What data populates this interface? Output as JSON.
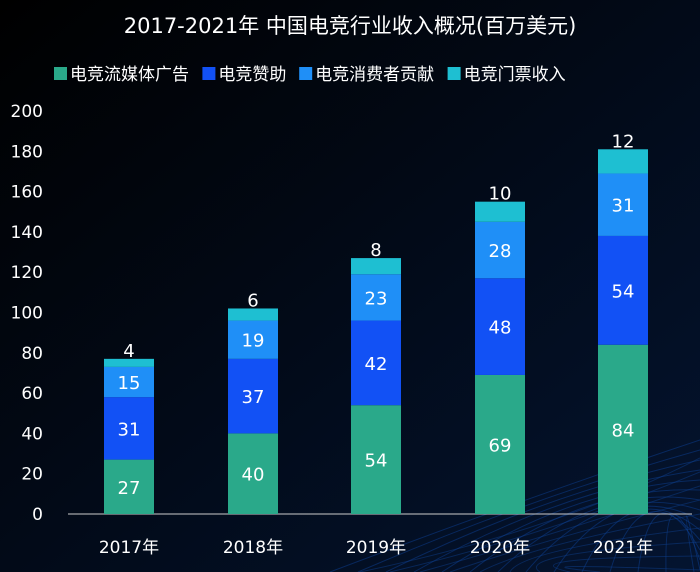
{
  "chart_data": {
    "type": "bar",
    "stacked": true,
    "title": "2017-2021年  中国电竞行业收入概况(百万美元)",
    "categories": [
      "2017年",
      "2018年",
      "2019年",
      "2020年",
      "2021年"
    ],
    "series": [
      {
        "name": "电竞流媒体广告",
        "color": "#2aa98a",
        "values": [
          27,
          40,
          54,
          69,
          84
        ]
      },
      {
        "name": "电竞赞助",
        "color": "#1251f5",
        "values": [
          31,
          37,
          42,
          48,
          54
        ]
      },
      {
        "name": "电竞消费者贡献",
        "color": "#1f8ff7",
        "values": [
          15,
          19,
          23,
          28,
          31
        ]
      },
      {
        "name": "电竞门票收入",
        "color": "#1ebfd2",
        "values": [
          4,
          6,
          8,
          10,
          12
        ]
      }
    ],
    "yticks": [
      0,
      20,
      40,
      60,
      80,
      100,
      120,
      140,
      160,
      180,
      200
    ],
    "ylim": [
      0,
      200
    ],
    "legend_position": "top",
    "grid": false
  }
}
